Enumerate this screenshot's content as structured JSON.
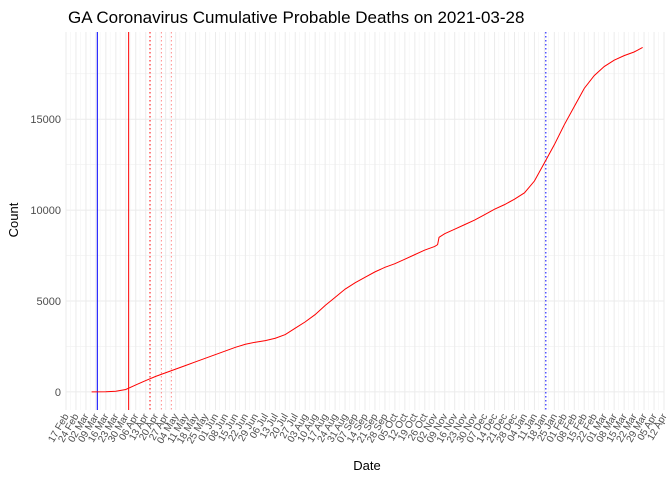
{
  "chart_data": {
    "type": "line",
    "title": "GA Coronavirus Cumulative Probable Deaths on 2021-03-28",
    "xlabel": "Date",
    "ylabel": "Count",
    "x_range": [
      "2020-02-17",
      "2021-04-12"
    ],
    "ylim": [
      -1000,
      19800
    ],
    "y_ticks": [
      0,
      5000,
      10000,
      15000
    ],
    "x_ticks": [
      "17 Feb",
      "24 Feb",
      "02 Mar",
      "09 Mar",
      "16 Mar",
      "23 Mar",
      "30 Mar",
      "06 Apr",
      "13 Apr",
      "20 Apr",
      "27 Apr",
      "04 May",
      "11 May",
      "18 May",
      "25 May",
      "01 Jun",
      "08 Jun",
      "15 Jun",
      "22 Jun",
      "29 Jun",
      "06 Jul",
      "13 Jul",
      "20 Jul",
      "27 Jul",
      "03 Aug",
      "10 Aug",
      "17 Aug",
      "24 Aug",
      "31 Aug",
      "07 Sep",
      "14 Sep",
      "21 Sep",
      "28 Sep",
      "05 Oct",
      "12 Oct",
      "19 Oct",
      "26 Oct",
      "02 Nov",
      "09 Nov",
      "16 Nov",
      "23 Nov",
      "30 Nov",
      "07 Dec",
      "14 Dec",
      "21 Dec",
      "28 Dec",
      "04 Jan",
      "11 Jan",
      "18 Jan",
      "25 Jan",
      "01 Feb",
      "08 Feb",
      "15 Feb",
      "22 Feb",
      "01 Mar",
      "08 Mar",
      "15 Mar",
      "22 Mar",
      "29 Mar",
      "05 Apr",
      "12 Apr"
    ],
    "grid": true,
    "legend": "none",
    "series": [
      {
        "color": "#ff0000",
        "points": [
          [
            "2020-03-06",
            0
          ],
          [
            "2020-03-16",
            5
          ],
          [
            "2020-03-23",
            30
          ],
          [
            "2020-03-30",
            130
          ],
          [
            "2020-04-06",
            380
          ],
          [
            "2020-04-13",
            620
          ],
          [
            "2020-04-20",
            850
          ],
          [
            "2020-04-27",
            1050
          ],
          [
            "2020-05-04",
            1250
          ],
          [
            "2020-05-11",
            1450
          ],
          [
            "2020-05-18",
            1650
          ],
          [
            "2020-05-25",
            1850
          ],
          [
            "2020-06-01",
            2050
          ],
          [
            "2020-06-08",
            2250
          ],
          [
            "2020-06-15",
            2450
          ],
          [
            "2020-06-22",
            2620
          ],
          [
            "2020-06-29",
            2730
          ],
          [
            "2020-07-06",
            2820
          ],
          [
            "2020-07-13",
            2950
          ],
          [
            "2020-07-20",
            3150
          ],
          [
            "2020-07-27",
            3500
          ],
          [
            "2020-08-03",
            3850
          ],
          [
            "2020-08-10",
            4250
          ],
          [
            "2020-08-17",
            4750
          ],
          [
            "2020-08-24",
            5200
          ],
          [
            "2020-08-31",
            5650
          ],
          [
            "2020-09-07",
            6000
          ],
          [
            "2020-09-14",
            6300
          ],
          [
            "2020-09-21",
            6600
          ],
          [
            "2020-09-28",
            6850
          ],
          [
            "2020-10-05",
            7050
          ],
          [
            "2020-10-12",
            7300
          ],
          [
            "2020-10-19",
            7550
          ],
          [
            "2020-10-26",
            7800
          ],
          [
            "2020-11-02",
            8000
          ],
          [
            "2020-11-04",
            8100
          ],
          [
            "2020-11-05",
            8500
          ],
          [
            "2020-11-09",
            8700
          ],
          [
            "2020-11-16",
            8950
          ],
          [
            "2020-11-23",
            9200
          ],
          [
            "2020-11-30",
            9450
          ],
          [
            "2020-12-07",
            9750
          ],
          [
            "2020-12-14",
            10050
          ],
          [
            "2020-12-21",
            10300
          ],
          [
            "2020-12-28",
            10600
          ],
          [
            "2021-01-04",
            10950
          ],
          [
            "2021-01-11",
            11600
          ],
          [
            "2021-01-18",
            12600
          ],
          [
            "2021-01-25",
            13600
          ],
          [
            "2021-02-01",
            14700
          ],
          [
            "2021-02-08",
            15700
          ],
          [
            "2021-02-15",
            16700
          ],
          [
            "2021-02-22",
            17400
          ],
          [
            "2021-03-01",
            17900
          ],
          [
            "2021-03-08",
            18250
          ],
          [
            "2021-03-15",
            18500
          ],
          [
            "2021-03-22",
            18700
          ],
          [
            "2021-03-28",
            18950
          ]
        ]
      }
    ],
    "reference_lines": [
      {
        "date": "2020-03-10",
        "color": "#0000ff",
        "style": "solid"
      },
      {
        "date": "2020-04-01",
        "color": "#ff0000",
        "style": "solid"
      },
      {
        "date": "2020-04-16",
        "color": "#ff0000",
        "style": "dotted"
      },
      {
        "date": "2020-04-24",
        "color": "#ff0000",
        "style": "dotted",
        "opacity": 0.45
      },
      {
        "date": "2020-05-01",
        "color": "#ff0000",
        "style": "dotted",
        "opacity": 0.45
      },
      {
        "date": "2021-01-19",
        "color": "#0000ff",
        "style": "dotted"
      }
    ]
  }
}
